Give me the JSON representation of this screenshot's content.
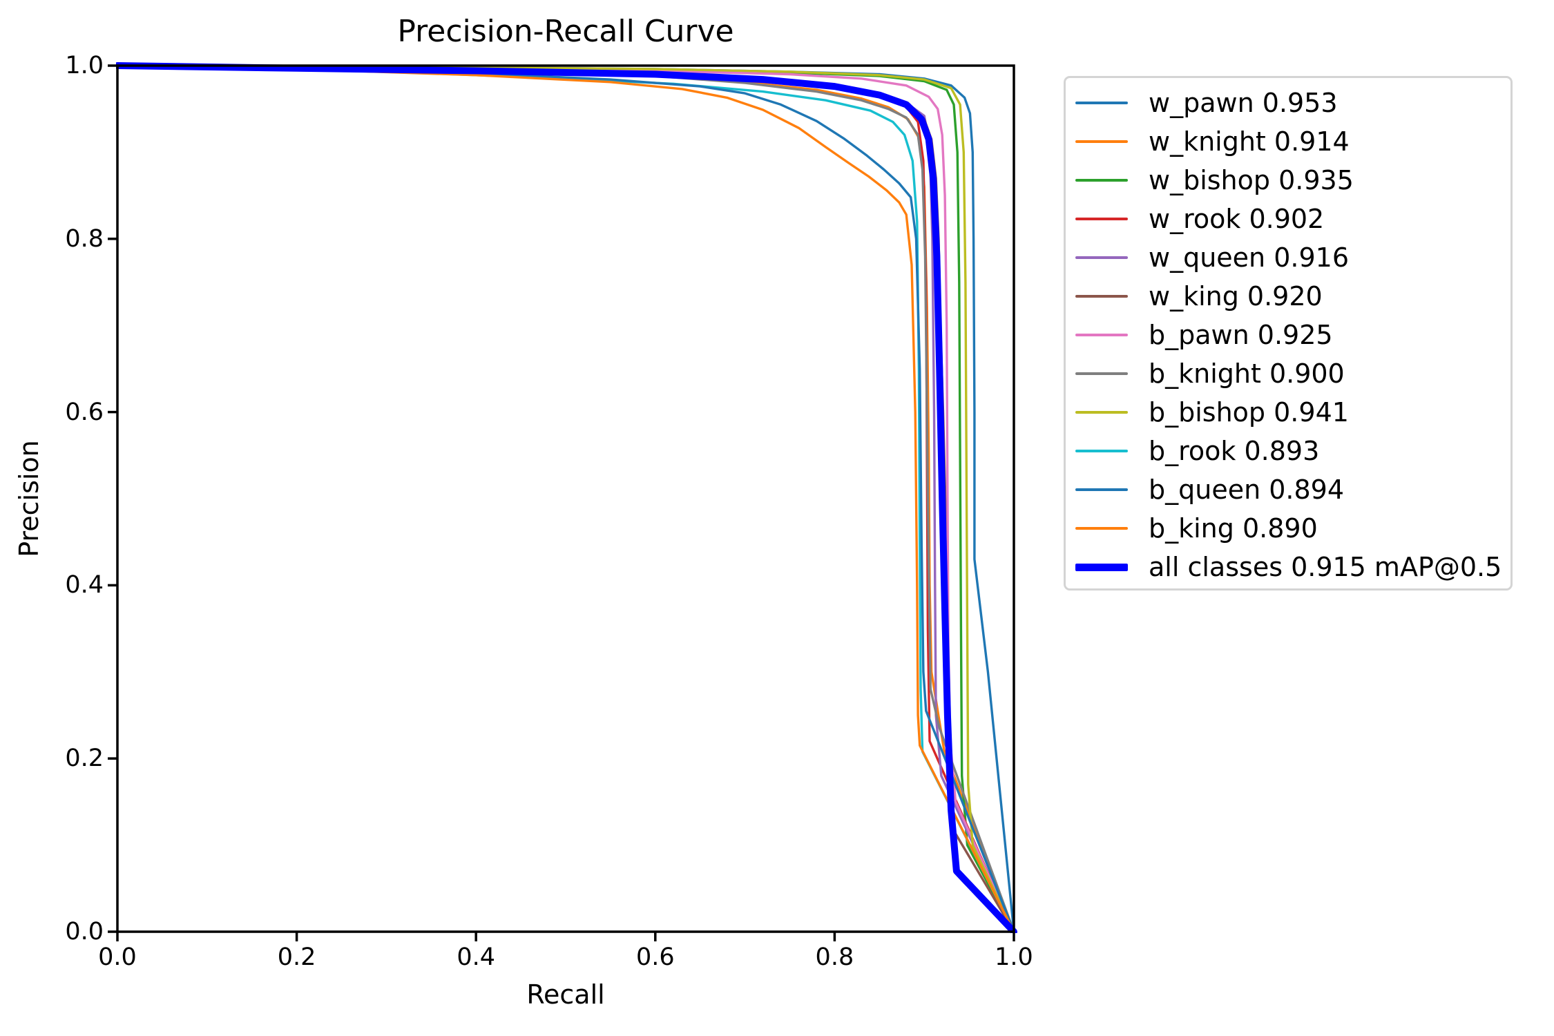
{
  "title": "Precision-Recall Curve",
  "axes": {
    "xlabel": "Recall",
    "ylabel": "Precision",
    "x_tick_labels": [
      "0.0",
      "0.2",
      "0.4",
      "0.6",
      "0.8",
      "1.0"
    ],
    "y_tick_labels": [
      "0.0",
      "0.2",
      "0.4",
      "0.6",
      "0.8",
      "1.0"
    ]
  },
  "legend": {
    "items": [
      {
        "label": "w_pawn 0.953",
        "color": "#1f77b4",
        "thick": false
      },
      {
        "label": "w_knight 0.914",
        "color": "#ff7f0e",
        "thick": false
      },
      {
        "label": "w_bishop 0.935",
        "color": "#2ca02c",
        "thick": false
      },
      {
        "label": "w_rook 0.902",
        "color": "#d62728",
        "thick": false
      },
      {
        "label": "w_queen 0.916",
        "color": "#9467bd",
        "thick": false
      },
      {
        "label": "w_king 0.920",
        "color": "#8c564b",
        "thick": false
      },
      {
        "label": "b_pawn 0.925",
        "color": "#e377c2",
        "thick": false
      },
      {
        "label": "b_knight 0.900",
        "color": "#7f7f7f",
        "thick": false
      },
      {
        "label": "b_bishop 0.941",
        "color": "#bcbd22",
        "thick": false
      },
      {
        "label": "b_rook 0.893",
        "color": "#17becf",
        "thick": false
      },
      {
        "label": "b_queen 0.894",
        "color": "#1f77b4",
        "thick": false
      },
      {
        "label": "b_king 0.890",
        "color": "#ff7f0e",
        "thick": false
      },
      {
        "label": "all classes 0.915 mAP@0.5",
        "color": "#0000ff",
        "thick": true
      }
    ]
  },
  "chart_data": {
    "type": "line",
    "title": "Precision-Recall Curve",
    "xlabel": "Recall",
    "ylabel": "Precision",
    "xlim": [
      0,
      1
    ],
    "ylim": [
      0,
      1
    ],
    "grid": false,
    "legend_position": "right",
    "map_at_0_5": 0.915,
    "series": [
      {
        "name": "w_pawn",
        "ap": 0.953,
        "color": "#1f77b4",
        "linewidth": "normal",
        "points": [
          [
            0,
            1.0
          ],
          [
            0.2,
            0.999
          ],
          [
            0.4,
            0.998
          ],
          [
            0.6,
            0.996
          ],
          [
            0.75,
            0.993
          ],
          [
            0.85,
            0.99
          ],
          [
            0.9,
            0.985
          ],
          [
            0.93,
            0.977
          ],
          [
            0.945,
            0.963
          ],
          [
            0.951,
            0.945
          ],
          [
            0.954,
            0.9
          ],
          [
            0.955,
            0.8
          ],
          [
            0.956,
            0.6
          ],
          [
            0.956,
            0.43
          ],
          [
            0.971,
            0.3
          ],
          [
            1.0,
            0.0
          ]
        ]
      },
      {
        "name": "w_knight",
        "ap": 0.914,
        "color": "#ff7f0e",
        "linewidth": "normal",
        "points": [
          [
            0,
            1.0
          ],
          [
            0.2,
            0.998
          ],
          [
            0.4,
            0.994
          ],
          [
            0.6,
            0.988
          ],
          [
            0.7,
            0.981
          ],
          [
            0.78,
            0.972
          ],
          [
            0.83,
            0.962
          ],
          [
            0.86,
            0.952
          ],
          [
            0.882,
            0.938
          ],
          [
            0.895,
            0.915
          ],
          [
            0.9,
            0.86
          ],
          [
            0.903,
            0.72
          ],
          [
            0.905,
            0.55
          ],
          [
            0.906,
            0.4
          ],
          [
            0.908,
            0.3
          ],
          [
            0.922,
            0.21
          ],
          [
            1.0,
            0.0
          ]
        ]
      },
      {
        "name": "w_bishop",
        "ap": 0.935,
        "color": "#2ca02c",
        "linewidth": "normal",
        "points": [
          [
            0,
            1.0
          ],
          [
            0.2,
            0.999
          ],
          [
            0.4,
            0.997
          ],
          [
            0.6,
            0.995
          ],
          [
            0.75,
            0.992
          ],
          [
            0.85,
            0.988
          ],
          [
            0.9,
            0.982
          ],
          [
            0.925,
            0.972
          ],
          [
            0.933,
            0.955
          ],
          [
            0.937,
            0.9
          ],
          [
            0.939,
            0.75
          ],
          [
            0.94,
            0.55
          ],
          [
            0.941,
            0.35
          ],
          [
            0.942,
            0.18
          ],
          [
            0.948,
            0.1
          ],
          [
            1.0,
            0.0
          ]
        ]
      },
      {
        "name": "w_rook",
        "ap": 0.902,
        "color": "#d62728",
        "linewidth": "normal",
        "points": [
          [
            0,
            1.0
          ],
          [
            0.2,
            0.998
          ],
          [
            0.4,
            0.995
          ],
          [
            0.6,
            0.991
          ],
          [
            0.72,
            0.985
          ],
          [
            0.8,
            0.978
          ],
          [
            0.85,
            0.968
          ],
          [
            0.878,
            0.955
          ],
          [
            0.893,
            0.935
          ],
          [
            0.899,
            0.89
          ],
          [
            0.902,
            0.75
          ],
          [
            0.903,
            0.55
          ],
          [
            0.904,
            0.35
          ],
          [
            0.906,
            0.22
          ],
          [
            1.0,
            0.0
          ]
        ]
      },
      {
        "name": "w_queen",
        "ap": 0.916,
        "color": "#9467bd",
        "linewidth": "normal",
        "points": [
          [
            0,
            1.0
          ],
          [
            0.2,
            0.998
          ],
          [
            0.4,
            0.995
          ],
          [
            0.6,
            0.991
          ],
          [
            0.72,
            0.985
          ],
          [
            0.8,
            0.977
          ],
          [
            0.85,
            0.968
          ],
          [
            0.88,
            0.957
          ],
          [
            0.9,
            0.942
          ],
          [
            0.906,
            0.91
          ],
          [
            0.909,
            0.8
          ],
          [
            0.911,
            0.6
          ],
          [
            0.912,
            0.4
          ],
          [
            0.913,
            0.25
          ],
          [
            0.919,
            0.18
          ],
          [
            1.0,
            0.0
          ]
        ]
      },
      {
        "name": "w_king",
        "ap": 0.92,
        "color": "#8c564b",
        "linewidth": "normal",
        "points": [
          [
            0,
            1.0
          ],
          [
            0.2,
            0.998
          ],
          [
            0.4,
            0.995
          ],
          [
            0.6,
            0.99
          ],
          [
            0.72,
            0.984
          ],
          [
            0.8,
            0.976
          ],
          [
            0.85,
            0.966
          ],
          [
            0.88,
            0.955
          ],
          [
            0.9,
            0.938
          ],
          [
            0.908,
            0.915
          ],
          [
            0.913,
            0.87
          ],
          [
            0.916,
            0.8
          ],
          [
            0.918,
            0.7
          ],
          [
            0.921,
            0.6
          ],
          [
            0.924,
            0.48
          ],
          [
            0.926,
            0.35
          ],
          [
            0.928,
            0.2
          ],
          [
            0.931,
            0.12
          ],
          [
            1.0,
            0.0
          ]
        ]
      },
      {
        "name": "b_pawn",
        "ap": 0.925,
        "color": "#e377c2",
        "linewidth": "normal",
        "points": [
          [
            0,
            1.0
          ],
          [
            0.2,
            0.999
          ],
          [
            0.4,
            0.997
          ],
          [
            0.6,
            0.994
          ],
          [
            0.75,
            0.99
          ],
          [
            0.83,
            0.985
          ],
          [
            0.88,
            0.977
          ],
          [
            0.905,
            0.964
          ],
          [
            0.915,
            0.95
          ],
          [
            0.92,
            0.92
          ],
          [
            0.923,
            0.85
          ],
          [
            0.925,
            0.7
          ],
          [
            0.926,
            0.5
          ],
          [
            0.927,
            0.33
          ],
          [
            0.929,
            0.22
          ],
          [
            0.935,
            0.15
          ],
          [
            1.0,
            0.0
          ]
        ]
      },
      {
        "name": "b_knight",
        "ap": 0.9,
        "color": "#7f7f7f",
        "linewidth": "normal",
        "points": [
          [
            0,
            1.0
          ],
          [
            0.2,
            0.998
          ],
          [
            0.4,
            0.994
          ],
          [
            0.6,
            0.988
          ],
          [
            0.7,
            0.98
          ],
          [
            0.78,
            0.97
          ],
          [
            0.83,
            0.96
          ],
          [
            0.86,
            0.95
          ],
          [
            0.88,
            0.94
          ],
          [
            0.893,
            0.92
          ],
          [
            0.898,
            0.88
          ],
          [
            0.901,
            0.78
          ],
          [
            0.903,
            0.6
          ],
          [
            0.905,
            0.42
          ],
          [
            0.907,
            0.28
          ],
          [
            0.917,
            0.235
          ],
          [
            1.0,
            0.0
          ]
        ]
      },
      {
        "name": "b_bishop",
        "ap": 0.941,
        "color": "#bcbd22",
        "linewidth": "normal",
        "points": [
          [
            0,
            1.0
          ],
          [
            0.2,
            0.999
          ],
          [
            0.4,
            0.998
          ],
          [
            0.6,
            0.996
          ],
          [
            0.75,
            0.993
          ],
          [
            0.85,
            0.989
          ],
          [
            0.9,
            0.984
          ],
          [
            0.93,
            0.974
          ],
          [
            0.94,
            0.955
          ],
          [
            0.944,
            0.9
          ],
          [
            0.946,
            0.75
          ],
          [
            0.947,
            0.55
          ],
          [
            0.948,
            0.35
          ],
          [
            0.949,
            0.17
          ],
          [
            0.954,
            0.1
          ],
          [
            1.0,
            0.0
          ]
        ]
      },
      {
        "name": "b_rook",
        "ap": 0.893,
        "color": "#17becf",
        "linewidth": "normal",
        "points": [
          [
            0,
            1.0
          ],
          [
            0.2,
            0.996
          ],
          [
            0.35,
            0.991
          ],
          [
            0.5,
            0.985
          ],
          [
            0.62,
            0.979
          ],
          [
            0.72,
            0.97
          ],
          [
            0.79,
            0.96
          ],
          [
            0.84,
            0.948
          ],
          [
            0.865,
            0.935
          ],
          [
            0.878,
            0.92
          ],
          [
            0.887,
            0.89
          ],
          [
            0.892,
            0.82
          ],
          [
            0.894,
            0.65
          ],
          [
            0.895,
            0.45
          ],
          [
            0.896,
            0.28
          ],
          [
            0.898,
            0.208
          ],
          [
            1.0,
            0.0
          ]
        ]
      },
      {
        "name": "b_queen",
        "ap": 0.894,
        "color": "#1f77b4",
        "linewidth": "normal",
        "points": [
          [
            0,
            1.0
          ],
          [
            0.2,
            0.997
          ],
          [
            0.4,
            0.991
          ],
          [
            0.55,
            0.984
          ],
          [
            0.65,
            0.976
          ],
          [
            0.7,
            0.968
          ],
          [
            0.74,
            0.955
          ],
          [
            0.78,
            0.936
          ],
          [
            0.81,
            0.916
          ],
          [
            0.835,
            0.897
          ],
          [
            0.855,
            0.88
          ],
          [
            0.872,
            0.864
          ],
          [
            0.885,
            0.848
          ],
          [
            0.891,
            0.8
          ],
          [
            0.895,
            0.65
          ],
          [
            0.897,
            0.45
          ],
          [
            0.899,
            0.3
          ],
          [
            0.902,
            0.255
          ],
          [
            1.0,
            0.0
          ]
        ]
      },
      {
        "name": "b_king",
        "ap": 0.89,
        "color": "#ff7f0e",
        "linewidth": "normal",
        "points": [
          [
            0,
            1.0
          ],
          [
            0.2,
            0.996
          ],
          [
            0.4,
            0.989
          ],
          [
            0.55,
            0.981
          ],
          [
            0.63,
            0.973
          ],
          [
            0.68,
            0.963
          ],
          [
            0.72,
            0.949
          ],
          [
            0.76,
            0.928
          ],
          [
            0.79,
            0.906
          ],
          [
            0.815,
            0.888
          ],
          [
            0.838,
            0.872
          ],
          [
            0.858,
            0.856
          ],
          [
            0.872,
            0.842
          ],
          [
            0.88,
            0.828
          ],
          [
            0.886,
            0.77
          ],
          [
            0.89,
            0.6
          ],
          [
            0.892,
            0.4
          ],
          [
            0.893,
            0.25
          ],
          [
            0.895,
            0.215
          ],
          [
            1.0,
            0.0
          ]
        ]
      },
      {
        "name": "all classes",
        "ap": 0.915,
        "color": "#0000ff",
        "linewidth": "thick",
        "points": [
          [
            0,
            1.0
          ],
          [
            0.2,
            0.997
          ],
          [
            0.4,
            0.994
          ],
          [
            0.6,
            0.99
          ],
          [
            0.72,
            0.984
          ],
          [
            0.8,
            0.976
          ],
          [
            0.85,
            0.966
          ],
          [
            0.88,
            0.955
          ],
          [
            0.897,
            0.938
          ],
          [
            0.905,
            0.915
          ],
          [
            0.91,
            0.87
          ],
          [
            0.914,
            0.78
          ],
          [
            0.917,
            0.65
          ],
          [
            0.92,
            0.5
          ],
          [
            0.923,
            0.37
          ],
          [
            0.926,
            0.25
          ],
          [
            0.93,
            0.14
          ],
          [
            0.936,
            0.07
          ],
          [
            1.0,
            0.0
          ]
        ]
      }
    ]
  }
}
